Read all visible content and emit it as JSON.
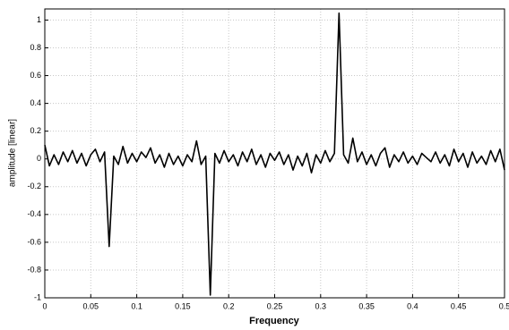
{
  "chart_data": {
    "type": "line",
    "xlabel": "Frequency",
    "ylabel": "amplitude [linear]",
    "xlim": [
      0,
      0.5
    ],
    "ylim": [
      -1,
      1.08
    ],
    "xticks": [
      0,
      0.05,
      0.1,
      0.15,
      0.2,
      0.25,
      0.3,
      0.35,
      0.4,
      0.45,
      0.5
    ],
    "yticks": [
      -1,
      -0.8,
      -0.6,
      -0.4,
      -0.2,
      0,
      0.2,
      0.4,
      0.6,
      0.8,
      1
    ],
    "grid": true,
    "color": "#000000",
    "x": [
      0,
      0.005,
      0.01,
      0.015,
      0.02,
      0.025,
      0.03,
      0.035,
      0.04,
      0.045,
      0.05,
      0.055,
      0.06,
      0.065,
      0.07,
      0.075,
      0.08,
      0.085,
      0.09,
      0.095,
      0.1,
      0.105,
      0.11,
      0.115,
      0.12,
      0.125,
      0.13,
      0.135,
      0.14,
      0.145,
      0.15,
      0.155,
      0.16,
      0.165,
      0.17,
      0.175,
      0.18,
      0.185,
      0.19,
      0.195,
      0.2,
      0.205,
      0.21,
      0.215,
      0.22,
      0.225,
      0.23,
      0.235,
      0.24,
      0.245,
      0.25,
      0.255,
      0.26,
      0.265,
      0.27,
      0.275,
      0.28,
      0.285,
      0.29,
      0.295,
      0.3,
      0.305,
      0.31,
      0.315,
      0.32,
      0.325,
      0.33,
      0.335,
      0.34,
      0.345,
      0.35,
      0.355,
      0.36,
      0.365,
      0.37,
      0.375,
      0.38,
      0.385,
      0.39,
      0.395,
      0.4,
      0.405,
      0.41,
      0.415,
      0.42,
      0.425,
      0.43,
      0.435,
      0.44,
      0.445,
      0.45,
      0.455,
      0.46,
      0.465,
      0.47,
      0.475,
      0.48,
      0.485,
      0.49,
      0.495,
      0.5
    ],
    "values": [
      0.1,
      -0.05,
      0.03,
      -0.04,
      0.05,
      -0.02,
      0.06,
      -0.03,
      0.04,
      -0.05,
      0.03,
      0.07,
      -0.02,
      0.05,
      -0.63,
      0.02,
      -0.04,
      0.09,
      -0.03,
      0.04,
      -0.02,
      0.05,
      0.01,
      0.08,
      -0.03,
      0.03,
      -0.06,
      0.04,
      -0.04,
      0.02,
      -0.05,
      0.03,
      -0.02,
      0.13,
      -0.04,
      0.02,
      -0.98,
      0.04,
      -0.03,
      0.06,
      -0.02,
      0.03,
      -0.05,
      0.05,
      -0.02,
      0.07,
      -0.04,
      0.03,
      -0.06,
      0.04,
      -0.01,
      0.05,
      -0.04,
      0.03,
      -0.08,
      0.02,
      -0.05,
      0.04,
      -0.1,
      0.03,
      -0.03,
      0.06,
      -0.02,
      0.04,
      1.05,
      0.03,
      -0.03,
      0.15,
      -0.02,
      0.05,
      -0.04,
      0.03,
      -0.05,
      0.04,
      0.08,
      -0.06,
      0.03,
      -0.02,
      0.05,
      -0.03,
      0.02,
      -0.04,
      0.04,
      0.01,
      -0.02,
      0.05,
      -0.03,
      0.03,
      -0.05,
      0.07,
      -0.02,
      0.04,
      -0.06,
      0.05,
      -0.03,
      0.02,
      -0.04,
      0.06,
      -0.02,
      0.07,
      -0.08
    ]
  }
}
